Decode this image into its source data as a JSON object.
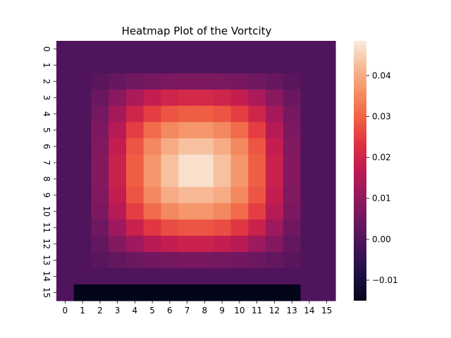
{
  "chart_data": {
    "type": "heatmap",
    "title": "Heatmap Plot of the Vortcity",
    "xlabel": "",
    "ylabel": "",
    "x_tick_labels": [
      "0",
      "1",
      "2",
      "3",
      "4",
      "5",
      "6",
      "7",
      "8",
      "9",
      "10",
      "11",
      "12",
      "13",
      "14",
      "15"
    ],
    "y_tick_labels": [
      "0",
      "1",
      "2",
      "3",
      "4",
      "5",
      "6",
      "7",
      "8",
      "9",
      "10",
      "11",
      "12",
      "13",
      "14",
      "15"
    ],
    "colorbar": {
      "colormap": "rocket",
      "vmin": -0.015,
      "vmax": 0.0485,
      "ticks": [
        -0.01,
        0.0,
        0.01,
        0.02,
        0.03,
        0.04
      ],
      "tick_labels": [
        "−0.01",
        "0.00",
        "0.01",
        "0.02",
        "0.03",
        "0.04"
      ]
    },
    "values": [
      [
        0,
        0,
        0,
        0,
        0,
        0,
        0,
        0,
        0,
        0,
        0,
        0,
        0,
        0,
        0,
        0
      ],
      [
        0,
        0,
        0,
        0,
        0,
        0,
        0,
        0,
        0,
        0,
        0,
        0,
        0,
        0,
        0,
        0
      ],
      [
        0,
        0,
        0.0015,
        0.0035,
        0.005,
        0.006,
        0.0065,
        0.0068,
        0.0068,
        0.0065,
        0.006,
        0.005,
        0.0035,
        0.0015,
        0,
        0
      ],
      [
        0,
        0,
        0.004,
        0.009,
        0.014,
        0.018,
        0.02,
        0.021,
        0.021,
        0.02,
        0.018,
        0.014,
        0.009,
        0.004,
        0,
        0
      ],
      [
        0,
        0,
        0.006,
        0.013,
        0.02,
        0.025,
        0.028,
        0.029,
        0.029,
        0.028,
        0.025,
        0.02,
        0.013,
        0.006,
        0,
        0
      ],
      [
        0,
        0,
        0.007,
        0.016,
        0.025,
        0.031,
        0.035,
        0.037,
        0.037,
        0.035,
        0.031,
        0.025,
        0.016,
        0.007,
        0,
        0
      ],
      [
        0,
        0,
        0.0075,
        0.018,
        0.028,
        0.035,
        0.04,
        0.043,
        0.043,
        0.04,
        0.035,
        0.028,
        0.018,
        0.0075,
        0,
        0
      ],
      [
        0,
        0,
        0.008,
        0.019,
        0.029,
        0.037,
        0.043,
        0.047,
        0.047,
        0.043,
        0.037,
        0.029,
        0.019,
        0.008,
        0,
        0
      ],
      [
        0,
        0,
        0.008,
        0.019,
        0.029,
        0.037,
        0.043,
        0.047,
        0.047,
        0.043,
        0.037,
        0.029,
        0.019,
        0.008,
        0,
        0
      ],
      [
        0,
        0,
        0.0075,
        0.018,
        0.028,
        0.035,
        0.04,
        0.042,
        0.042,
        0.04,
        0.035,
        0.028,
        0.018,
        0.0075,
        0,
        0
      ],
      [
        0,
        0,
        0.007,
        0.016,
        0.025,
        0.031,
        0.035,
        0.037,
        0.037,
        0.035,
        0.031,
        0.025,
        0.016,
        0.007,
        0,
        0
      ],
      [
        0,
        0,
        0.005,
        0.012,
        0.019,
        0.024,
        0.027,
        0.028,
        0.028,
        0.027,
        0.024,
        0.019,
        0.012,
        0.005,
        0,
        0
      ],
      [
        0,
        0,
        0.003,
        0.008,
        0.012,
        0.016,
        0.018,
        0.019,
        0.019,
        0.018,
        0.016,
        0.012,
        0.008,
        0.003,
        0,
        0
      ],
      [
        0,
        0,
        0.0015,
        0.003,
        0.0045,
        0.0055,
        0.006,
        0.0062,
        0.0062,
        0.006,
        0.0055,
        0.0045,
        0.003,
        0.0015,
        0,
        0
      ],
      [
        0,
        0,
        0,
        0,
        0,
        0,
        0,
        0,
        0,
        0,
        0,
        0,
        0,
        0,
        0,
        0
      ],
      [
        0,
        -0.015,
        -0.015,
        -0.015,
        -0.015,
        -0.015,
        -0.015,
        -0.015,
        -0.015,
        -0.015,
        -0.015,
        -0.015,
        -0.015,
        -0.015,
        0,
        0
      ]
    ]
  }
}
